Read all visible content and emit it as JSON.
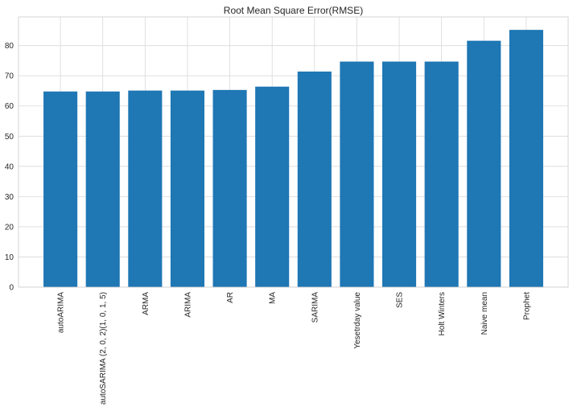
{
  "chart_data": {
    "type": "bar",
    "title": "Root Mean Square Error(RMSE)",
    "xlabel": "",
    "ylabel": "",
    "categories": [
      "autoARIMA",
      "autoSARIMA (2, 0, 2)(1, 0, 1, 5)",
      "ARMA",
      "ARIMA",
      "AR",
      "MA",
      "SARIMA",
      "Yesetrday value",
      "SES",
      "Holt Winters",
      "Naive mean",
      "Prophet"
    ],
    "values": [
      64.8,
      64.8,
      65.1,
      65.1,
      65.3,
      66.4,
      71.4,
      74.7,
      74.7,
      74.7,
      81.6,
      85.2
    ],
    "ylim": [
      0,
      89.5
    ],
    "yticks": [
      0,
      10,
      20,
      30,
      40,
      50,
      60,
      70,
      80
    ],
    "grid": true,
    "legend": "none",
    "bar_color": "#1f77b4"
  }
}
